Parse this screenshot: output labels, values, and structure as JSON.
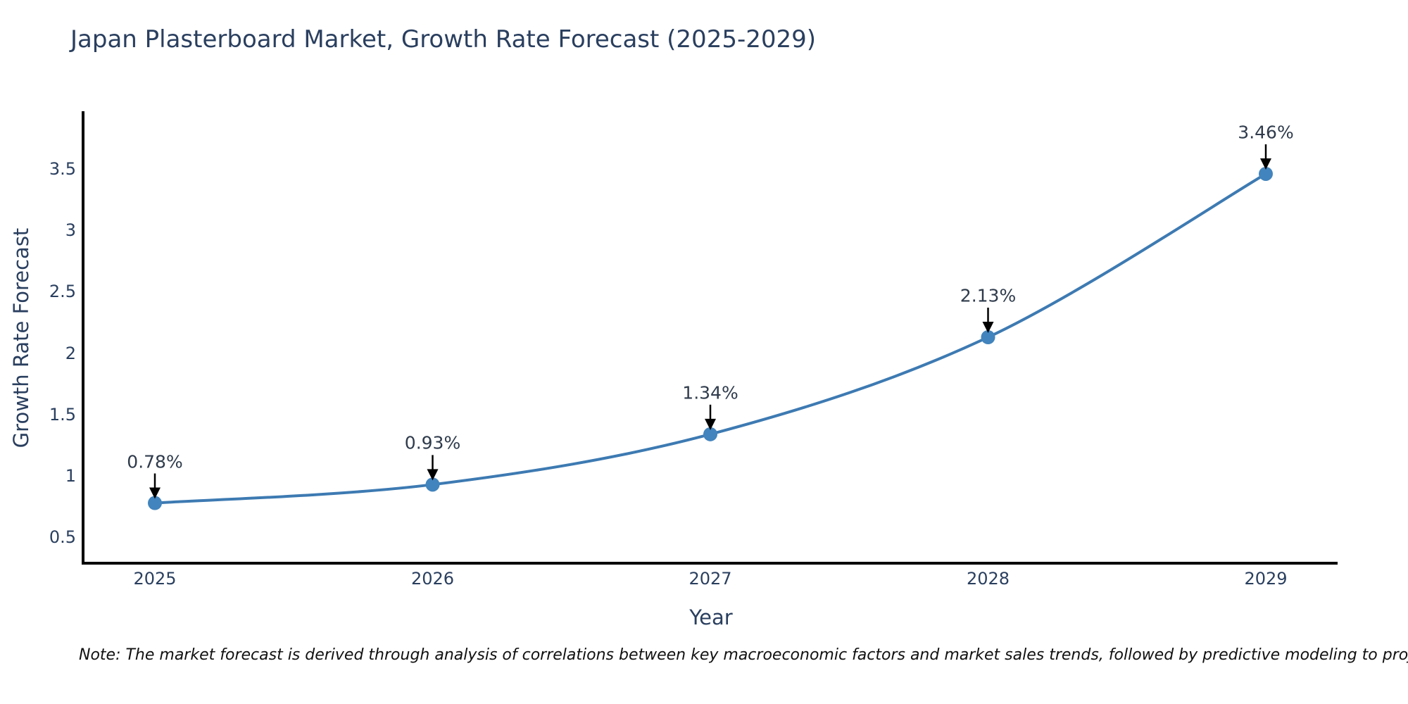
{
  "title": "Japan Plasterboard Market, Growth Rate Forecast (2025-2029)",
  "note": "Note: The market forecast is derived through analysis of correlations between key macroeconomic factors and market sales trends, followed by predictive modeling to project future sales",
  "chart_data": {
    "type": "line",
    "title": "Japan Plasterboard Market, Growth Rate Forecast (2025-2029)",
    "xlabel": "Year",
    "ylabel": "Growth Rate Forecast",
    "categories": [
      "2025",
      "2026",
      "2027",
      "2028",
      "2029"
    ],
    "values": [
      0.78,
      0.93,
      1.34,
      2.13,
      3.46
    ],
    "point_labels": [
      "0.78%",
      "0.93%",
      "1.34%",
      "2.13%",
      "3.46%"
    ],
    "yticks": [
      0.5,
      1,
      1.5,
      2,
      2.5,
      3,
      3.5
    ],
    "ytick_labels": [
      "0.5",
      "1",
      "1.5",
      "2",
      "2.5",
      "3",
      "3.5"
    ],
    "ylim": [
      0.29,
      3.97
    ],
    "grid": false,
    "legend": false,
    "line_shape": "spline",
    "colors": {
      "line": "#3d7ab2",
      "marker": "#4284bd",
      "axis": "#000000",
      "arrow": "#000000",
      "text": "#2a3f5f"
    }
  }
}
